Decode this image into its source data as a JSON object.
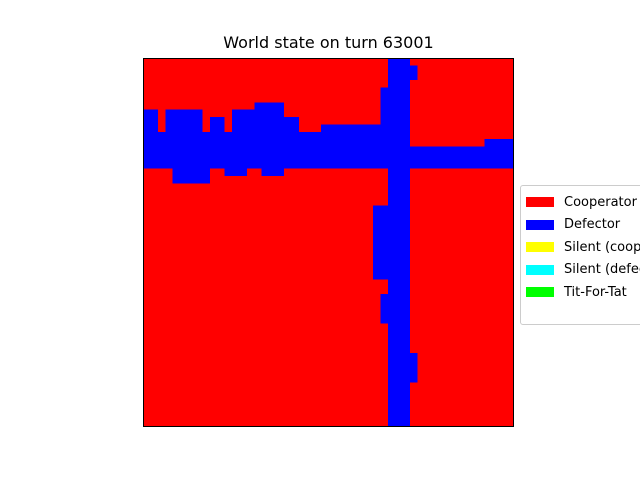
{
  "chart_data": {
    "type": "heatmap",
    "title": "World state on turn 63001",
    "xlabel": "",
    "ylabel": "",
    "legend_position": "center-right (outside plot)",
    "axes_visible": false,
    "grid": false,
    "legend": [
      {
        "label": "Cooperator",
        "color": "#ff0000"
      },
      {
        "label": "Defector",
        "color": "#0000ff"
      },
      {
        "label": "Silent (coop)",
        "color": "#ffff00"
      },
      {
        "label": "Silent (defect)",
        "color": "#00ffff"
      },
      {
        "label": "Tit-For-Tat",
        "color": "#00ff00"
      }
    ],
    "grid_size": [
      50,
      50
    ],
    "background_state": "Cooperator",
    "defector_regions": [
      {
        "x": [
          33,
          36
        ],
        "y": [
          0,
          50
        ]
      },
      {
        "x": [
          32,
          33
        ],
        "y": [
          4,
          14
        ]
      },
      {
        "x": [
          31,
          33
        ],
        "y": [
          20,
          30
        ]
      },
      {
        "x": [
          32,
          33
        ],
        "y": [
          32,
          36
        ]
      },
      {
        "x": [
          33,
          37
        ],
        "y": [
          40,
          44
        ]
      },
      {
        "x": [
          35,
          37
        ],
        "y": [
          1,
          3
        ]
      },
      {
        "x": [
          0,
          34
        ],
        "y": [
          10,
          15
        ]
      },
      {
        "x": [
          34,
          50
        ],
        "y": [
          12,
          15
        ]
      },
      {
        "x": [
          0,
          2
        ],
        "y": [
          7,
          10
        ]
      },
      {
        "x": [
          3,
          8
        ],
        "y": [
          7,
          10
        ]
      },
      {
        "x": [
          9,
          11
        ],
        "y": [
          8,
          10
        ]
      },
      {
        "x": [
          12,
          15
        ],
        "y": [
          7,
          10
        ]
      },
      {
        "x": [
          15,
          19
        ],
        "y": [
          6,
          10
        ]
      },
      {
        "x": [
          19,
          21
        ],
        "y": [
          8,
          10
        ]
      },
      {
        "x": [
          24,
          32
        ],
        "y": [
          9,
          10
        ]
      },
      {
        "x": [
          4,
          9
        ],
        "y": [
          15,
          17
        ]
      },
      {
        "x": [
          11,
          14
        ],
        "y": [
          15,
          16
        ]
      },
      {
        "x": [
          16,
          19
        ],
        "y": [
          15,
          16
        ]
      },
      {
        "x": [
          20,
          21
        ],
        "y": [
          14,
          15
        ]
      },
      {
        "x": [
          46,
          50
        ],
        "y": [
          11,
          12
        ]
      },
      {
        "x": [
          40,
          46
        ],
        "y": [
          12,
          13
        ]
      }
    ]
  }
}
